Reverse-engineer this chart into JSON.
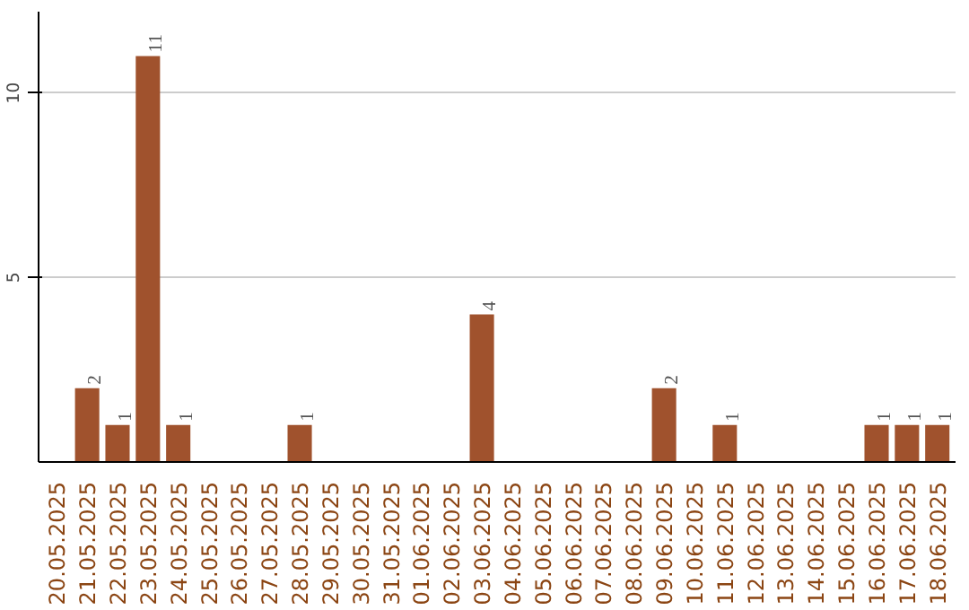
{
  "chart_data": {
    "type": "bar",
    "categories": [
      "20.05.2025",
      "21.05.2025",
      "22.05.2025",
      "23.05.2025",
      "24.05.2025",
      "25.05.2025",
      "26.05.2025",
      "27.05.2025",
      "28.05.2025",
      "29.05.2025",
      "30.05.2025",
      "31.05.2025",
      "01.06.2025",
      "02.06.2025",
      "03.06.2025",
      "04.06.2025",
      "05.06.2025",
      "06.06.2025",
      "07.06.2025",
      "08.06.2025",
      "09.06.2025",
      "10.06.2025",
      "11.06.2025",
      "12.06.2025",
      "13.06.2025",
      "14.06.2025",
      "15.06.2025",
      "16.06.2025",
      "17.06.2025",
      "18.06.2025"
    ],
    "values": [
      0,
      2,
      1,
      11,
      1,
      0,
      0,
      0,
      1,
      0,
      0,
      0,
      0,
      0,
      4,
      0,
      0,
      0,
      0,
      0,
      2,
      0,
      1,
      0,
      0,
      0,
      0,
      1,
      1,
      1
    ],
    "value_labels": [
      null,
      "2",
      "1",
      "11",
      "1",
      null,
      null,
      null,
      "1",
      null,
      null,
      null,
      null,
      null,
      "4",
      null,
      null,
      null,
      null,
      null,
      "2",
      null,
      "1",
      null,
      null,
      null,
      null,
      "1",
      "1",
      "1"
    ],
    "color": "#a0522d",
    "ylim": [
      0,
      12.2
    ],
    "yticks": [
      5,
      10
    ],
    "grid": "y"
  }
}
